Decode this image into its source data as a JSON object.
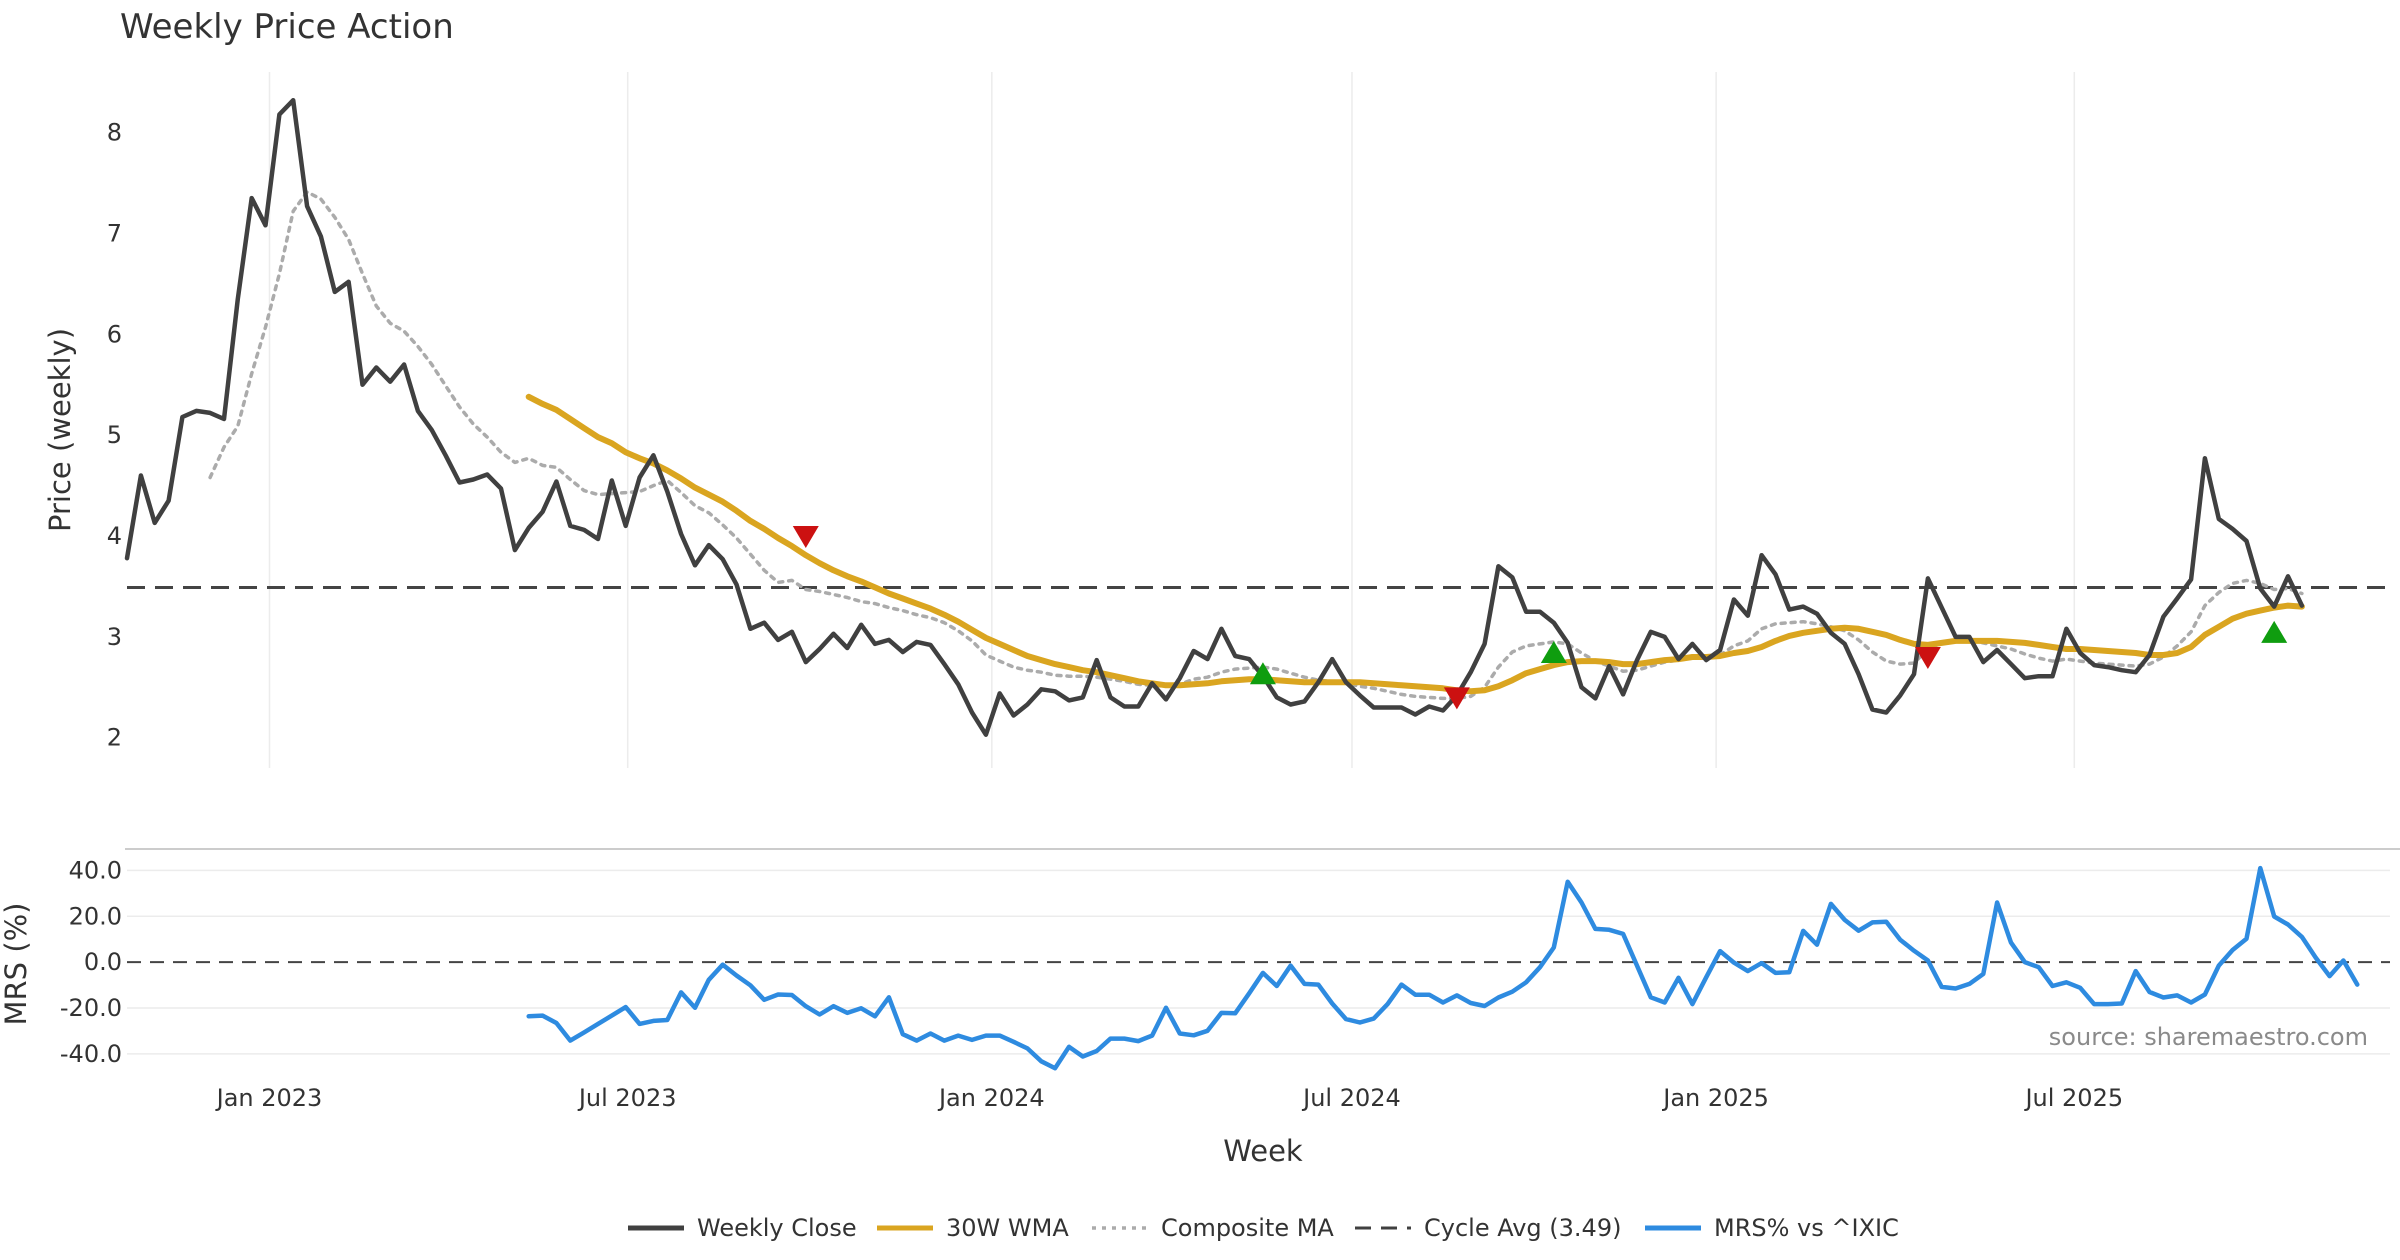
{
  "chart_data": [
    {
      "type": "line",
      "title": "Weekly Price Action",
      "ylabel": "Price (weekly)",
      "ylim": [
        1.7,
        8.6
      ],
      "yticks": [
        "2",
        "3",
        "4",
        "5",
        "6",
        "7",
        "8"
      ],
      "x_start": "2022-10-21",
      "x_end": "2025-12-05",
      "cycle_avg": 3.49,
      "series": [
        {
          "name": "Weekly Close",
          "color": "#404040",
          "values": [
            3.78,
            4.6,
            4.13,
            4.35,
            5.18,
            5.24,
            5.22,
            5.16,
            6.35,
            7.35,
            7.08,
            8.18,
            8.32,
            7.27,
            6.97,
            6.42,
            6.52,
            5.5,
            5.67,
            5.53,
            5.7,
            5.24,
            5.05,
            4.8,
            4.53,
            4.56,
            4.61,
            4.47,
            3.86,
            4.08,
            4.24,
            4.54,
            4.1,
            4.06,
            3.97,
            4.55,
            4.1,
            4.58,
            4.8,
            4.44,
            4.02,
            3.71,
            3.91,
            3.77,
            3.52,
            3.08,
            3.14,
            2.97,
            3.05,
            2.75,
            2.88,
            3.03,
            2.89,
            3.12,
            2.93,
            2.97,
            2.85,
            2.95,
            2.92,
            2.73,
            2.53,
            2.25,
            2.03,
            2.44,
            2.22,
            2.33,
            2.48,
            2.46,
            2.37,
            2.4,
            2.77,
            2.4,
            2.31,
            2.31,
            2.54,
            2.38,
            2.59,
            2.86,
            2.78,
            3.08,
            2.81,
            2.78,
            2.61,
            2.4,
            2.33,
            2.36,
            2.55,
            2.78,
            2.55,
            2.42,
            2.3,
            2.3,
            2.3,
            2.23,
            2.31,
            2.27,
            2.42,
            2.65,
            2.93,
            3.7,
            3.59,
            3.25,
            3.25,
            3.14,
            2.94,
            2.5,
            2.39,
            2.71,
            2.43,
            2.77,
            3.05,
            3.0,
            2.78,
            2.93,
            2.77,
            2.87,
            3.37,
            3.21,
            3.81,
            3.62,
            3.27,
            3.3,
            3.23,
            3.04,
            2.93,
            2.63,
            2.28,
            2.25,
            2.42,
            2.63,
            3.58,
            3.29,
            3.0,
            3.0,
            2.75,
            2.87,
            2.73,
            2.59,
            2.61,
            2.61,
            3.08,
            2.84,
            2.72,
            2.7,
            2.67,
            2.65,
            2.82,
            3.2,
            3.38,
            3.57,
            4.77,
            4.17,
            4.07,
            3.95,
            3.48,
            3.3,
            3.6,
            3.31
          ]
        },
        {
          "name": "30W WMA",
          "color": "#DAA520",
          "values": [
            null,
            null,
            null,
            null,
            null,
            null,
            null,
            null,
            null,
            null,
            null,
            null,
            null,
            null,
            null,
            null,
            null,
            null,
            null,
            null,
            null,
            null,
            null,
            null,
            null,
            null,
            null,
            null,
            null,
            5.38,
            5.31,
            5.25,
            5.16,
            5.07,
            4.98,
            4.92,
            4.83,
            4.77,
            4.72,
            4.65,
            4.57,
            4.48,
            4.41,
            4.34,
            4.25,
            4.15,
            4.07,
            3.98,
            3.9,
            3.81,
            3.73,
            3.66,
            3.6,
            3.55,
            3.49,
            3.43,
            3.38,
            3.33,
            3.28,
            3.22,
            3.15,
            3.07,
            2.99,
            2.93,
            2.87,
            2.81,
            2.77,
            2.73,
            2.7,
            2.67,
            2.65,
            2.62,
            2.59,
            2.56,
            2.54,
            2.52,
            2.52,
            2.53,
            2.54,
            2.56,
            2.57,
            2.58,
            2.58,
            2.57,
            2.56,
            2.55,
            2.55,
            2.55,
            2.55,
            2.55,
            2.54,
            2.53,
            2.52,
            2.51,
            2.5,
            2.49,
            2.47,
            2.46,
            2.47,
            2.51,
            2.57,
            2.64,
            2.68,
            2.72,
            2.75,
            2.76,
            2.76,
            2.75,
            2.73,
            2.73,
            2.75,
            2.77,
            2.78,
            2.8,
            2.8,
            2.81,
            2.84,
            2.86,
            2.9,
            2.96,
            3.01,
            3.04,
            3.06,
            3.08,
            3.09,
            3.08,
            3.05,
            3.02,
            2.97,
            2.93,
            2.92,
            2.94,
            2.96,
            2.96,
            2.96,
            2.96,
            2.95,
            2.94,
            2.92,
            2.9,
            2.88,
            2.88,
            2.87,
            2.86,
            2.85,
            2.84,
            2.82,
            2.82,
            2.84,
            2.9,
            3.02,
            3.1,
            3.18,
            3.23,
            3.26,
            3.29,
            3.31,
            3.3
          ]
        },
        {
          "name": "Composite MA",
          "color": "#ABABAB",
          "values": [
            null,
            null,
            null,
            null,
            null,
            null,
            4.58,
            4.88,
            5.09,
            5.61,
            6.07,
            6.6,
            7.22,
            7.41,
            7.34,
            7.16,
            6.94,
            6.6,
            6.28,
            6.11,
            6.03,
            5.88,
            5.7,
            5.49,
            5.28,
            5.11,
            4.98,
            4.83,
            4.73,
            4.77,
            4.7,
            4.68,
            4.56,
            4.45,
            4.41,
            4.42,
            4.43,
            4.44,
            4.5,
            4.55,
            4.43,
            4.3,
            4.23,
            4.11,
            3.98,
            3.82,
            3.66,
            3.54,
            3.56,
            3.47,
            3.45,
            3.42,
            3.39,
            3.35,
            3.33,
            3.29,
            3.26,
            3.22,
            3.19,
            3.14,
            3.06,
            2.96,
            2.82,
            2.76,
            2.7,
            2.67,
            2.65,
            2.62,
            2.61,
            2.61,
            2.6,
            2.58,
            2.56,
            2.53,
            2.52,
            2.51,
            2.53,
            2.58,
            2.6,
            2.65,
            2.68,
            2.69,
            2.7,
            2.68,
            2.64,
            2.6,
            2.57,
            2.56,
            2.54,
            2.51,
            2.49,
            2.46,
            2.43,
            2.41,
            2.4,
            2.39,
            2.39,
            2.41,
            2.5,
            2.7,
            2.85,
            2.91,
            2.93,
            2.95,
            2.93,
            2.84,
            2.76,
            2.71,
            2.66,
            2.67,
            2.71,
            2.75,
            2.77,
            2.79,
            2.79,
            2.82,
            2.91,
            2.96,
            3.08,
            3.13,
            3.14,
            3.15,
            3.13,
            3.1,
            3.06,
            2.97,
            2.85,
            2.76,
            2.73,
            2.74,
            2.88,
            2.94,
            2.95,
            2.97,
            2.94,
            2.91,
            2.88,
            2.83,
            2.79,
            2.76,
            2.78,
            2.76,
            2.74,
            2.73,
            2.72,
            2.71,
            2.73,
            2.8,
            2.91,
            3.05,
            3.31,
            3.44,
            3.53,
            3.56,
            3.53,
            3.47,
            3.48,
            3.43
          ]
        }
      ],
      "markers": [
        {
          "type": "sell",
          "date": "2023-09-29",
          "value": 4.0,
          "color": "#cc1111"
        },
        {
          "type": "buy",
          "date": "2024-05-17",
          "value": 2.63,
          "color": "#0f9d0f"
        },
        {
          "type": "sell",
          "date": "2024-08-23",
          "value": 2.4,
          "color": "#cc1111"
        },
        {
          "type": "buy",
          "date": "2024-10-11",
          "value": 2.84,
          "color": "#0f9d0f"
        },
        {
          "type": "sell",
          "date": "2025-04-18",
          "value": 2.8,
          "color": "#cc1111"
        },
        {
          "type": "buy",
          "date": "2025-10-10",
          "value": 3.04,
          "color": "#0f9d0f"
        }
      ]
    },
    {
      "type": "line",
      "ylabel": "MRS (%)",
      "ylim": [
        -47,
        48
      ],
      "yticks": [
        "-40.0",
        "-20.0",
        "0.0",
        "20.0",
        "40.0"
      ],
      "xlabel": "Week",
      "xticks": [
        {
          "date": "2023-01-01",
          "label": "Jan 2023"
        },
        {
          "date": "2023-07-01",
          "label": "Jul 2023"
        },
        {
          "date": "2024-01-01",
          "label": "Jan 2024"
        },
        {
          "date": "2024-07-01",
          "label": "Jul 2024"
        },
        {
          "date": "2025-01-01",
          "label": "Jan 2025"
        },
        {
          "date": "2025-07-01",
          "label": "Jul 2025"
        }
      ],
      "series": [
        {
          "name": "MRS% vs ^IXIC",
          "color": "#2E8BE0",
          "values": [
            null,
            null,
            null,
            null,
            null,
            null,
            null,
            null,
            null,
            null,
            null,
            null,
            null,
            null,
            null,
            null,
            null,
            null,
            null,
            null,
            null,
            null,
            null,
            null,
            null,
            null,
            null,
            null,
            null,
            -23.6,
            -23.3,
            -26.5,
            -34.2,
            -30.6,
            -26.9,
            -23.3,
            -19.6,
            -26.9,
            -25.6,
            -25.2,
            -13.2,
            -19.9,
            -7.7,
            -1.1,
            -5.8,
            -10.1,
            -16.4,
            -14.1,
            -14.3,
            -19.2,
            -22.8,
            -19.2,
            -22.1,
            -20.1,
            -23.6,
            -15.3,
            -31.4,
            -34.2,
            -31.1,
            -34.2,
            -32.0,
            -33.9,
            -32.0,
            -32.0,
            -34.7,
            -37.6,
            -43.2,
            -46.2,
            -36.9,
            -41.1,
            -38.7,
            -33.3,
            -33.3,
            -34.4,
            -32.0,
            -19.9,
            -31.1,
            -31.9,
            -29.9,
            -22.1,
            -22.3,
            -13.6,
            -4.7,
            -10.4,
            -1.5,
            -9.5,
            -9.8,
            -18.0,
            -24.8,
            -26.3,
            -24.6,
            -18.3,
            -9.8,
            -14.2,
            -14.2,
            -17.6,
            -14.5,
            -17.8,
            -19.1,
            -15.4,
            -12.9,
            -8.8,
            -2.2,
            6.4,
            35.0,
            26.0,
            14.5,
            14.1,
            12.3,
            -1.5,
            -15.3,
            -17.6,
            -6.8,
            -18.3,
            -6.6,
            4.8,
            -0.2,
            -3.9,
            -0.4,
            -4.7,
            -4.4,
            13.6,
            7.6,
            25.4,
            18.4,
            13.7,
            17.3,
            17.6,
            9.8,
            5.0,
            0.7,
            -10.8,
            -11.5,
            -9.5,
            -5.1,
            26.0,
            8.5,
            0.0,
            -2.2,
            -10.4,
            -8.8,
            -11.2,
            -18.3,
            -18.3,
            -18.0,
            -3.9,
            -13.0,
            -15.4,
            -14.5,
            -17.6,
            -14.1,
            -1.5,
            5.3,
            10.2,
            41.0,
            19.9,
            16.4,
            11.0,
            2.0,
            -6.1,
            0.7,
            -9.8
          ]
        }
      ],
      "annotation": "source: sharemaestro.com"
    }
  ],
  "legend": {
    "placement": "bottom-center",
    "items": [
      {
        "label": "Weekly Close",
        "style": "solid",
        "color": "#404040"
      },
      {
        "label": "30W WMA",
        "style": "solid",
        "color": "#DAA520"
      },
      {
        "label": "Composite MA",
        "style": "dotted",
        "color": "#ABABAB"
      },
      {
        "label": "Cycle Avg (3.49)",
        "style": "dashed",
        "color": "#404040"
      },
      {
        "label": "MRS% vs ^IXIC",
        "style": "solid",
        "color": "#2E8BE0"
      }
    ]
  }
}
